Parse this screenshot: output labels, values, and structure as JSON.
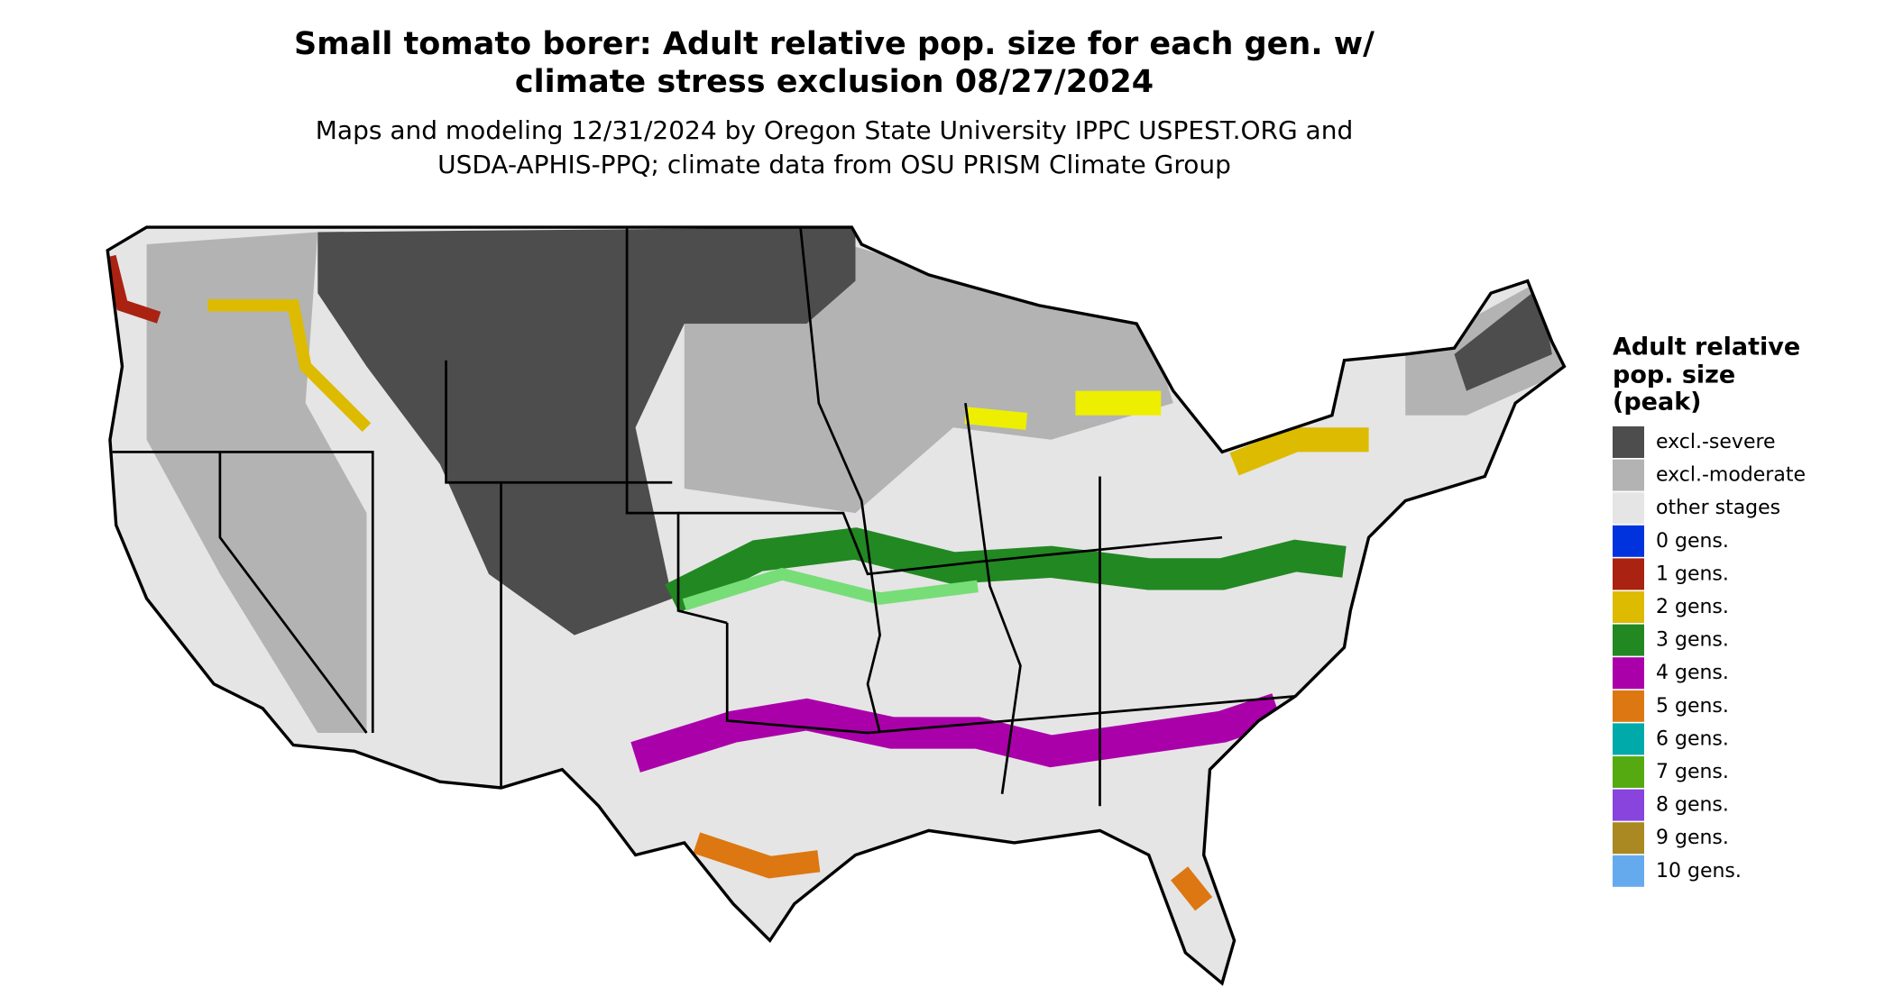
{
  "title": [
    "Small tomato borer: Adult relative pop. size for each gen. w/",
    "climate stress exclusion 08/27/2024"
  ],
  "subtitle": [
    "Maps and modeling 12/31/2024 by Oregon State University IPPC USPEST.ORG and",
    "USDA-APHIS-PPQ; climate data from OSU PRISM Climate Group"
  ],
  "legend": {
    "title": [
      "Adult relative",
      "pop. size",
      "(peak)"
    ],
    "items": [
      {
        "label": "excl.-severe",
        "color": "#4d4d4d"
      },
      {
        "label": "excl.-moderate",
        "color": "#b3b3b3"
      },
      {
        "label": "other stages",
        "color": "#e5e5e5"
      },
      {
        "label": "0 gens.",
        "color": "#0033dd"
      },
      {
        "label": "1 gens.",
        "color": "#aa2211"
      },
      {
        "label": "2 gens.",
        "color": "#ddbb00"
      },
      {
        "label": "3 gens.",
        "color": "#228822"
      },
      {
        "label": "4 gens.",
        "color": "#aa00aa"
      },
      {
        "label": "5 gens.",
        "color": "#dd7711"
      },
      {
        "label": "6 gens.",
        "color": "#00aaaa"
      },
      {
        "label": "7 gens.",
        "color": "#55aa11"
      },
      {
        "label": "8 gens.",
        "color": "#8844dd"
      },
      {
        "label": "9 gens.",
        "color": "#aa8822"
      },
      {
        "label": "10 gens.",
        "color": "#66aaee"
      }
    ]
  }
}
